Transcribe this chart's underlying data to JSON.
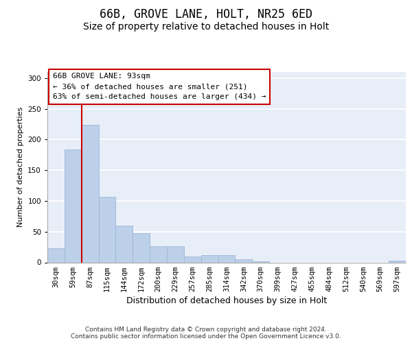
{
  "title1": "66B, GROVE LANE, HOLT, NR25 6ED",
  "title2": "Size of property relative to detached houses in Holt",
  "xlabel": "Distribution of detached houses by size in Holt",
  "ylabel": "Number of detached properties",
  "bar_color": "#bdd0e9",
  "bar_edge_color": "#9ab5d9",
  "background_color": "#e8eef8",
  "grid_color": "#ffffff",
  "categories": [
    "30sqm",
    "59sqm",
    "87sqm",
    "115sqm",
    "144sqm",
    "172sqm",
    "200sqm",
    "229sqm",
    "257sqm",
    "285sqm",
    "314sqm",
    "342sqm",
    "370sqm",
    "399sqm",
    "427sqm",
    "455sqm",
    "484sqm",
    "512sqm",
    "540sqm",
    "569sqm",
    "597sqm"
  ],
  "values": [
    23,
    184,
    224,
    107,
    60,
    47,
    26,
    26,
    9,
    12,
    12,
    5,
    2,
    0,
    0,
    0,
    0,
    0,
    0,
    0,
    3
  ],
  "ylim": [
    0,
    310
  ],
  "yticks": [
    0,
    50,
    100,
    150,
    200,
    250,
    300
  ],
  "red_line_bin": 2,
  "annotation_text": "66B GROVE LANE: 93sqm\n← 36% of detached houses are smaller (251)\n63% of semi-detached houses are larger (434) →",
  "annotation_box_color": "#ffffff",
  "annotation_border_color": "#cc0000",
  "footnote": "Contains HM Land Registry data © Crown copyright and database right 2024.\nContains public sector information licensed under the Open Government Licence v3.0.",
  "red_line_color": "#cc0000",
  "title1_fontsize": 12,
  "title2_fontsize": 10,
  "xlabel_fontsize": 9,
  "ylabel_fontsize": 8,
  "tick_fontsize": 7.5,
  "annotation_fontsize": 8,
  "footnote_fontsize": 6.5
}
